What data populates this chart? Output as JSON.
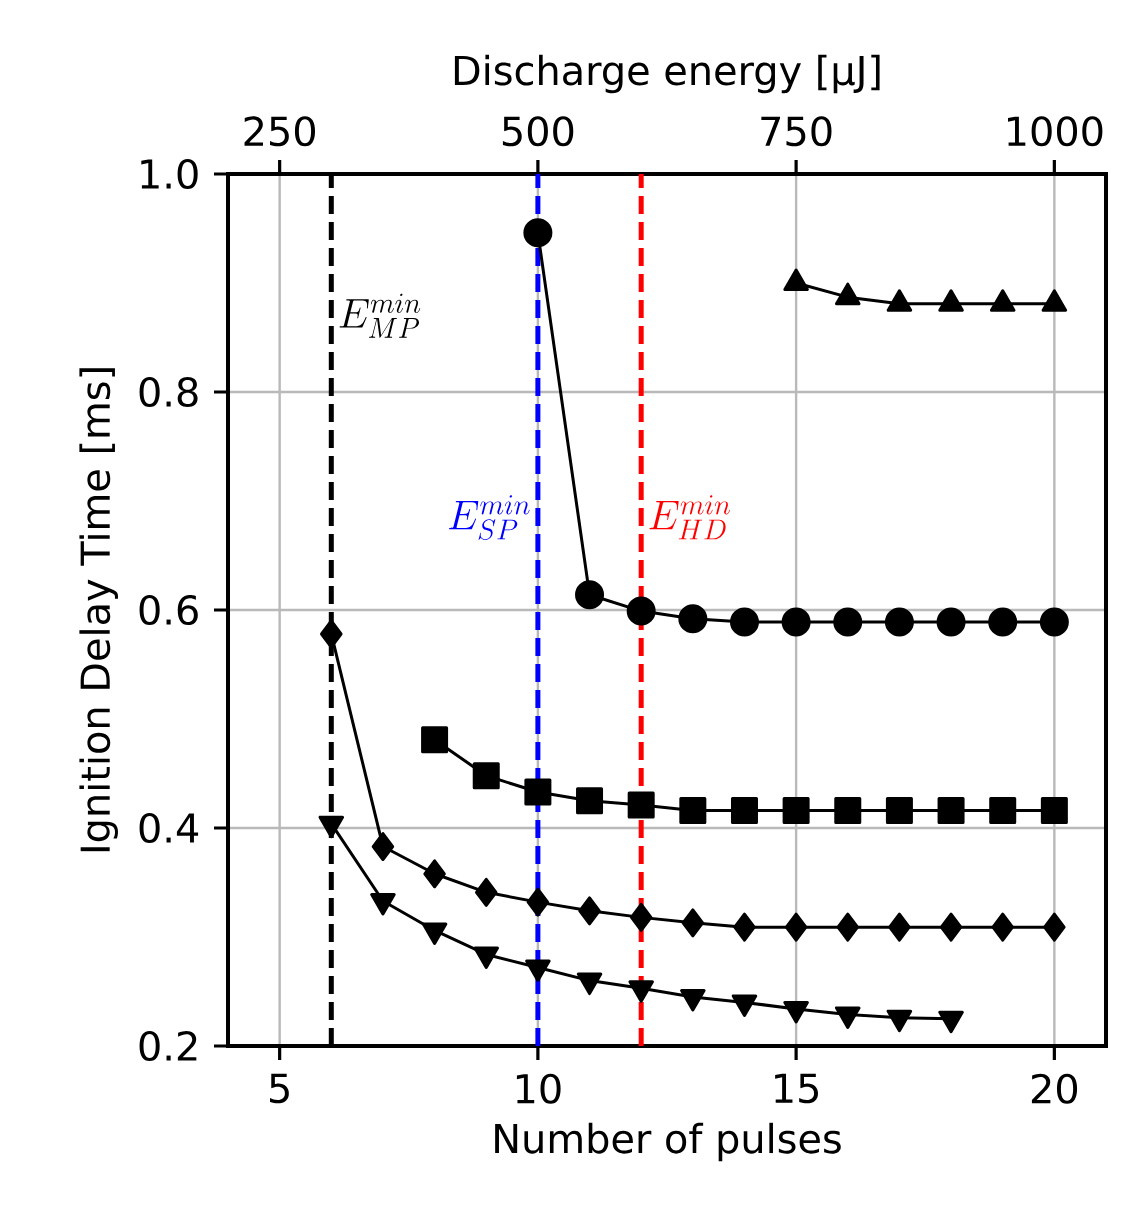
{
  "chart_data": {
    "type": "line",
    "xlabel": "Number of pulses",
    "ylabel": "Ignition Delay Time [ms]",
    "x2label": "Discharge energy [μJ]",
    "xlim": [
      4,
      21
    ],
    "xticks": [
      5,
      10,
      15,
      20
    ],
    "ylim": [
      0.2,
      1.0
    ],
    "yticks": [
      0.2,
      0.4,
      0.6,
      0.8,
      {
        "value": 1,
        "label": "1.0"
      }
    ],
    "x2lim": [
      200,
      1050
    ],
    "x2ticks": [
      250,
      500,
      750,
      1000
    ],
    "grid": true,
    "line_style": "solid",
    "series": [
      {
        "color": "#000000",
        "marker": "triangle",
        "x": [
          15,
          16,
          17,
          18,
          19,
          20
        ],
        "values": [
          0.9,
          0.887,
          0.881,
          0.881,
          0.881,
          0.881
        ]
      },
      {
        "color": "#000000",
        "marker": "circle",
        "x": [
          10,
          11,
          12,
          13,
          14,
          15,
          16,
          17,
          18,
          19,
          20
        ],
        "values": [
          0.946,
          0.614,
          0.599,
          0.592,
          0.589,
          0.589,
          0.589,
          0.589,
          0.589,
          0.589,
          0.589
        ]
      },
      {
        "color": "#000000",
        "marker": "square",
        "x": [
          8,
          9,
          10,
          11,
          12,
          13,
          14,
          15,
          16,
          17,
          18,
          19,
          20
        ],
        "values": [
          0.481,
          0.448,
          0.433,
          0.425,
          0.421,
          0.416,
          0.416,
          0.416,
          0.416,
          0.416,
          0.416,
          0.416,
          0.416
        ]
      },
      {
        "color": "#000000",
        "marker": "diamond",
        "x": [
          6,
          7,
          8,
          9,
          10,
          11,
          12,
          13,
          14,
          15,
          16,
          17,
          18,
          19,
          20
        ],
        "values": [
          0.578,
          0.383,
          0.358,
          0.341,
          0.332,
          0.324,
          0.318,
          0.313,
          0.309,
          0.309,
          0.309,
          0.309,
          0.309,
          0.309,
          0.309
        ]
      },
      {
        "color": "#000000",
        "marker": "triangle_down",
        "x": [
          6,
          7,
          8,
          9,
          10,
          11,
          12,
          13,
          14,
          15,
          16,
          17,
          18
        ],
        "values": [
          0.404,
          0.333,
          0.306,
          0.284,
          0.272,
          0.26,
          0.253,
          0.245,
          0.24,
          0.234,
          0.229,
          0.226,
          0.225
        ]
      }
    ],
    "ref_lines": [
      {
        "axis": "x",
        "value": 6,
        "label": "E_{MP}^{min}",
        "color": "#000000",
        "line_style": "dashed"
      },
      {
        "axis": "x",
        "value": 10,
        "label": "E_{SP}^{min}",
        "color": "#0000ff",
        "line_style": "dashed"
      },
      {
        "axis": "x",
        "value": 12,
        "label": "E_{HD}^{min}",
        "color": "#ff0000",
        "line_style": "dashed"
      }
    ]
  }
}
